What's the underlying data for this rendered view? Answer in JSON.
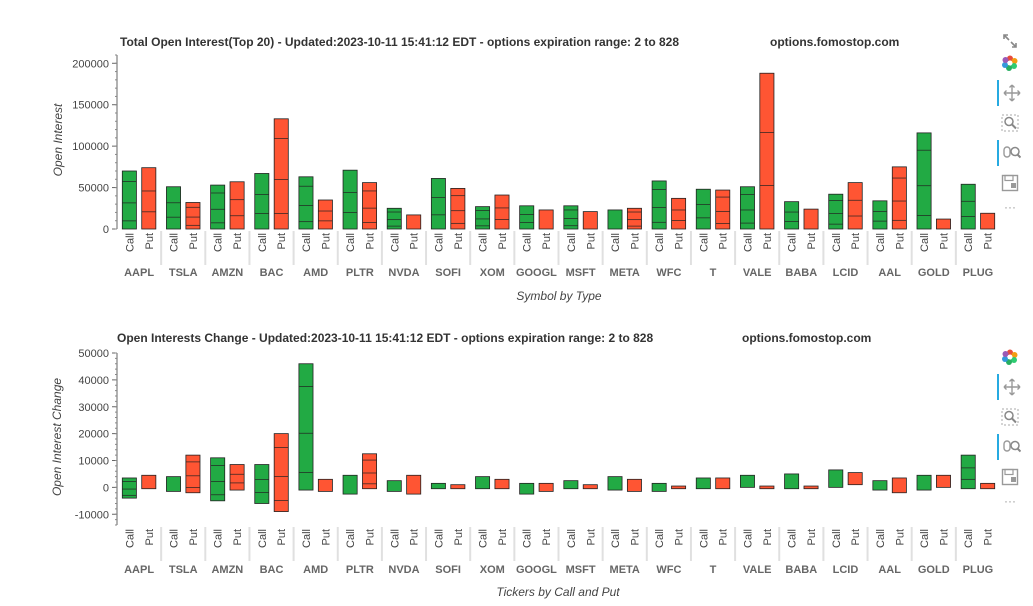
{
  "chart_data": [
    {
      "type": "bar",
      "title": "Total Open Interest(Top 20) - Updated:2023-10-11 15:41:12 EDT - options expiration range: 2 to 828",
      "watermark": "options.fomostop.com",
      "xlabel": "Symbol by Type",
      "ylabel": "Open Interest",
      "ylim": [
        0,
        210000
      ],
      "yticks": [
        0,
        50000,
        100000,
        150000,
        200000
      ],
      "ytick_labels": [
        "0",
        "50000",
        "100000",
        "150000",
        "200000"
      ],
      "categories": [
        "AAPL",
        "TSLA",
        "AMZN",
        "BAC",
        "AMD",
        "PLTR",
        "NVDA",
        "SOFI",
        "XOM",
        "GOOGL",
        "MSFT",
        "META",
        "WFC",
        "T",
        "VALE",
        "BABA",
        "LCID",
        "AAL",
        "GOLD",
        "PLUG"
      ],
      "types": [
        "Call",
        "Put"
      ],
      "series": [
        {
          "name": "Call",
          "color": "#22aa44",
          "values": [
            70000,
            51000,
            53000,
            67000,
            63000,
            71000,
            25000,
            61000,
            27000,
            28000,
            28000,
            23000,
            58000,
            48000,
            51000,
            33000,
            42000,
            34000,
            116000,
            54000
          ]
        },
        {
          "name": "Put",
          "color": "#ff5533",
          "values": [
            74000,
            32000,
            57000,
            133000,
            35000,
            56000,
            17000,
            49000,
            41000,
            23000,
            21000,
            25000,
            37000,
            47000,
            188000,
            24000,
            56000,
            75000,
            12000,
            19000
          ]
        }
      ]
    },
    {
      "type": "bar",
      "title": "Open Interests Change - Updated:2023-10-11 15:41:12 EDT - options expiration range: 2 to 828",
      "watermark": "options.fomostop.com",
      "xlabel": "Tickers by Call and Put",
      "ylabel": "Open Interest Change",
      "ylim": [
        -14000,
        50000
      ],
      "yticks": [
        -10000,
        0,
        10000,
        20000,
        30000,
        40000,
        50000
      ],
      "ytick_labels": [
        "-10000",
        "0",
        "10000",
        "20000",
        "30000",
        "40000",
        "50000"
      ],
      "categories": [
        "AAPL",
        "TSLA",
        "AMZN",
        "BAC",
        "AMD",
        "PLTR",
        "NVDA",
        "SOFI",
        "XOM",
        "GOOGL",
        "MSFT",
        "META",
        "WFC",
        "T",
        "VALE",
        "BABA",
        "LCID",
        "AAL",
        "GOLD",
        "PLUG"
      ],
      "types": [
        "Call",
        "Put"
      ],
      "series": [
        {
          "name": "Call",
          "color": "#22aa44",
          "ranges": [
            [
              -4000,
              3500
            ],
            [
              -1500,
              4000
            ],
            [
              -5000,
              11000
            ],
            [
              -6000,
              8500
            ],
            [
              -1000,
              46000
            ],
            [
              -2500,
              4500
            ],
            [
              -1500,
              2500
            ],
            [
              -500,
              1500
            ],
            [
              -500,
              4000
            ],
            [
              -2500,
              1500
            ],
            [
              -500,
              2500
            ],
            [
              -1000,
              4000
            ],
            [
              -1500,
              1500
            ],
            [
              -500,
              3500
            ],
            [
              0,
              4500
            ],
            [
              -500,
              5000
            ],
            [
              0,
              6500
            ],
            [
              -1000,
              2500
            ],
            [
              -1000,
              4500
            ],
            [
              -500,
              12000
            ]
          ]
        },
        {
          "name": "Put",
          "color": "#ff5533",
          "ranges": [
            [
              -500,
              4500
            ],
            [
              -2000,
              12000
            ],
            [
              -1000,
              8500
            ],
            [
              -9000,
              20000
            ],
            [
              -1500,
              3000
            ],
            [
              -500,
              12500
            ],
            [
              -2500,
              4500
            ],
            [
              -500,
              1000
            ],
            [
              -500,
              3000
            ],
            [
              -1500,
              1500
            ],
            [
              -500,
              1000
            ],
            [
              -1500,
              3000
            ],
            [
              -500,
              500
            ],
            [
              -500,
              3500
            ],
            [
              -500,
              500
            ],
            [
              -500,
              500
            ],
            [
              1000,
              5500
            ],
            [
              -2000,
              3500
            ],
            [
              0,
              4500
            ],
            [
              -500,
              1500
            ]
          ]
        }
      ]
    }
  ],
  "toolbar": {
    "tools": [
      "bokeh-logo-icon",
      "pan-icon",
      "box-zoom-icon",
      "wheel-zoom-icon",
      "save-icon",
      "more-icon"
    ],
    "more_label": "···"
  }
}
